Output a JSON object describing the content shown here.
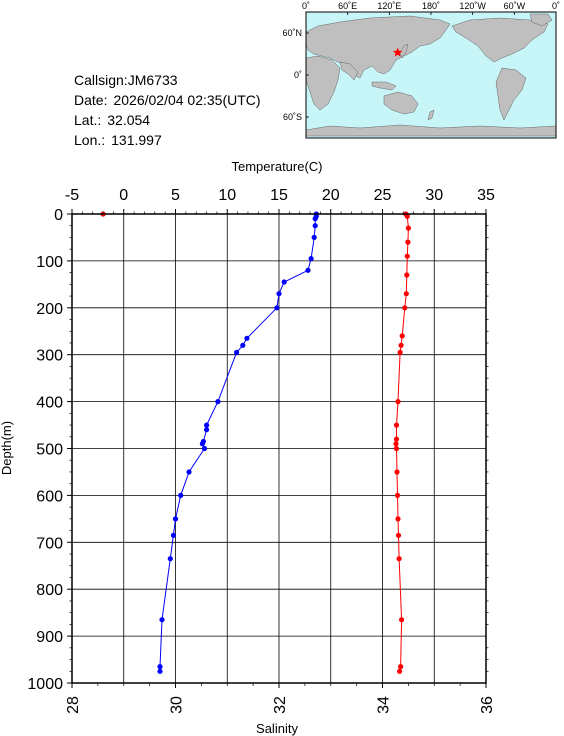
{
  "header": {
    "callsign_label": "Callsign:",
    "callsign": "JM6733",
    "date_label": "Date:",
    "date": "2026/02/04 02:35(UTC)",
    "lat_label": "Lat.:",
    "lat": "32.054",
    "lon_label": "Lon.:",
    "lon": "131.997"
  },
  "map": {
    "lon_labels": [
      "0˚",
      "60˚E",
      "120˚E",
      "180˚",
      "120˚W",
      "60˚W",
      "0˚"
    ],
    "lat_labels": [
      "60˚N",
      "0˚",
      "60˚S"
    ],
    "ocean_color": "#c8f5f8",
    "land_color": "#bfbfbf",
    "marker_color": "#ff0000",
    "marker": {
      "lon": 131.997,
      "lat": 32.054
    }
  },
  "chart_data": {
    "type": "line",
    "ylabel": "Depth(m)",
    "ylim": [
      1000,
      0
    ],
    "yticks": [
      "0",
      "100",
      "200",
      "300",
      "400",
      "500",
      "600",
      "700",
      "800",
      "900",
      "1000"
    ],
    "top_axis": {
      "label": "Temperature(C)",
      "range": [
        -5,
        35
      ],
      "ticks": [
        "-5",
        "0",
        "5",
        "10",
        "15",
        "20",
        "25",
        "30",
        "35"
      ]
    },
    "bottom_axis": {
      "label": "Salinity",
      "range": [
        28,
        36
      ],
      "ticks": [
        "28",
        "30",
        "32",
        "34",
        "36"
      ]
    },
    "grid": true,
    "series": [
      {
        "axis": "top",
        "color": "#0000ff",
        "points": [
          [
            18.6,
            0
          ],
          [
            18.6,
            5
          ],
          [
            18.5,
            10
          ],
          [
            18.5,
            25
          ],
          [
            18.4,
            50
          ],
          [
            18.1,
            95
          ],
          [
            17.8,
            120
          ],
          [
            15.5,
            145
          ],
          [
            15.0,
            170
          ],
          [
            14.8,
            200
          ],
          [
            11.9,
            265
          ],
          [
            11.5,
            280
          ],
          [
            10.9,
            295
          ],
          [
            9.1,
            400
          ],
          [
            8.0,
            450
          ],
          [
            8.0,
            460
          ],
          [
            7.7,
            485
          ],
          [
            7.6,
            490
          ],
          [
            7.8,
            500
          ],
          [
            6.3,
            550
          ],
          [
            5.5,
            600
          ],
          [
            5.0,
            650
          ],
          [
            4.8,
            685
          ],
          [
            4.5,
            735
          ],
          [
            3.7,
            865
          ],
          [
            3.5,
            965
          ],
          [
            3.5,
            975
          ]
        ]
      },
      {
        "axis": "bottom",
        "color": "#ff0000",
        "points": [
          [
            28.6,
            0
          ],
          [
            34.45,
            0
          ],
          [
            34.48,
            5
          ],
          [
            34.5,
            30
          ],
          [
            34.49,
            60
          ],
          [
            34.48,
            90
          ],
          [
            34.47,
            130
          ],
          [
            34.46,
            170
          ],
          [
            34.43,
            200
          ],
          [
            34.38,
            260
          ],
          [
            34.36,
            280
          ],
          [
            34.34,
            295
          ],
          [
            34.3,
            400
          ],
          [
            34.27,
            450
          ],
          [
            34.27,
            480
          ],
          [
            34.26,
            490
          ],
          [
            34.27,
            500
          ],
          [
            34.28,
            550
          ],
          [
            34.29,
            600
          ],
          [
            34.3,
            650
          ],
          [
            34.31,
            685
          ],
          [
            34.32,
            735
          ],
          [
            34.37,
            865
          ],
          [
            34.35,
            965
          ],
          [
            34.33,
            975
          ]
        ]
      }
    ]
  }
}
